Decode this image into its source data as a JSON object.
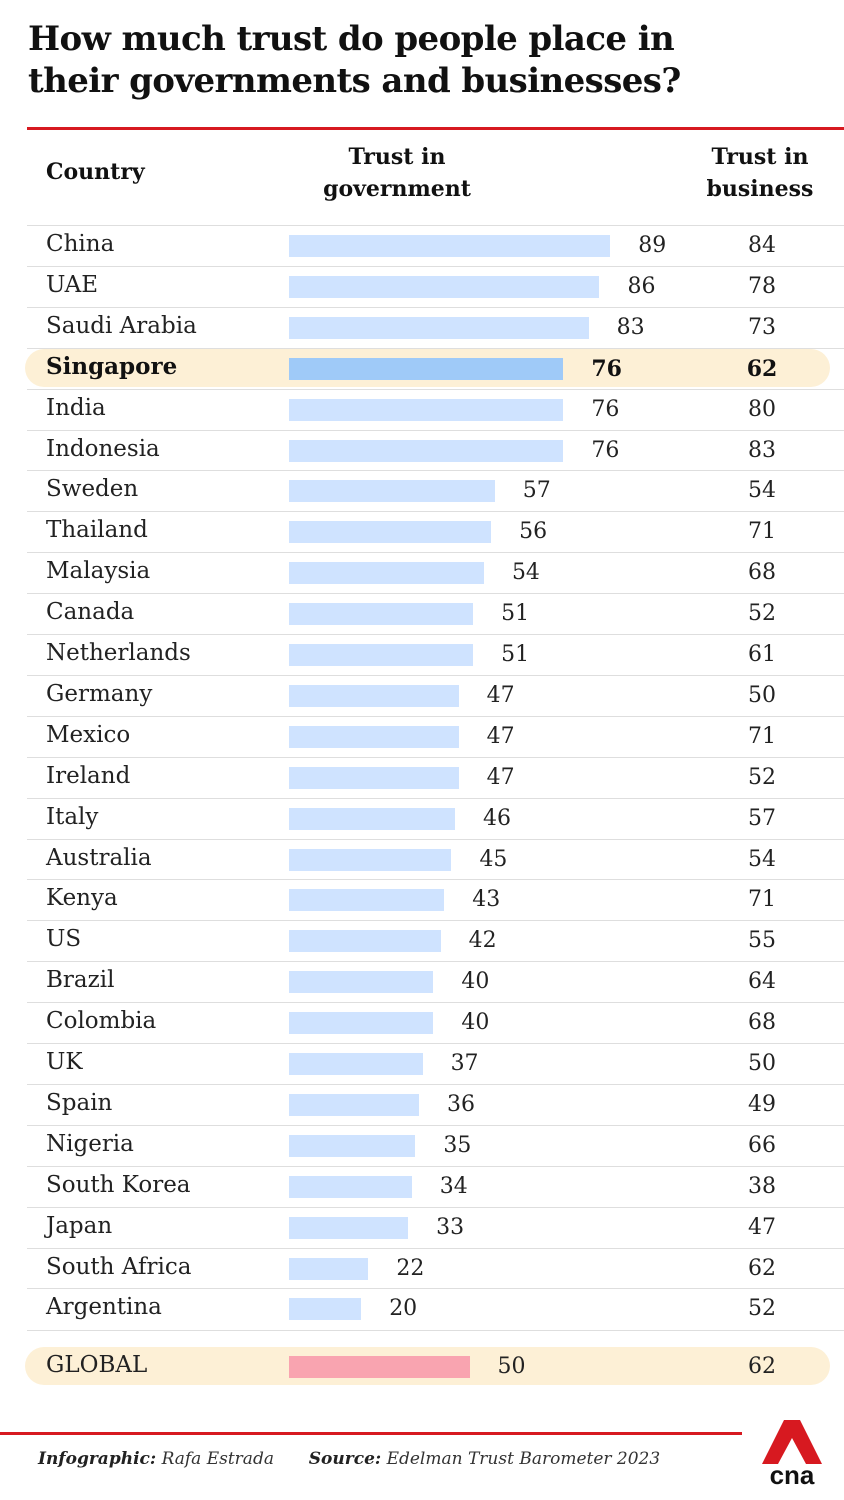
{
  "title_lines": [
    "How much trust do people place in",
    "their governments and businesses?"
  ],
  "columns": {
    "country": "Country",
    "gov_line1": "Trust in",
    "gov_line2": "government",
    "bus_line1": "Trust in",
    "bus_line2": "business"
  },
  "colors": {
    "accent_red": "#d71920",
    "bar": "#cfe3ff",
    "bar_featured": "#9fcaf8",
    "bar_global": "#f9a4b0",
    "row_highlight": "#fdf0d6"
  },
  "chart_data": {
    "type": "bar",
    "orientation": "horizontal",
    "title": "How much trust do people place in their governments and businesses?",
    "xlim": [
      0,
      100
    ],
    "categories": [
      "China",
      "UAE",
      "Saudi Arabia",
      "Singapore",
      "India",
      "Indonesia",
      "Sweden",
      "Thailand",
      "Malaysia",
      "Canada",
      "Netherlands",
      "Germany",
      "Mexico",
      "Ireland",
      "Italy",
      "Australia",
      "Kenya",
      "US",
      "Brazil",
      "Colombia",
      "UK",
      "Spain",
      "Nigeria",
      "South Korea",
      "Japan",
      "South Africa",
      "Argentina"
    ],
    "series": [
      {
        "name": "Trust in government",
        "values": [
          89,
          86,
          83,
          76,
          76,
          76,
          57,
          56,
          54,
          51,
          51,
          47,
          47,
          47,
          46,
          45,
          43,
          42,
          40,
          40,
          37,
          36,
          35,
          34,
          33,
          22,
          20
        ]
      },
      {
        "name": "Trust in business",
        "values": [
          84,
          78,
          73,
          62,
          80,
          83,
          54,
          71,
          68,
          52,
          61,
          50,
          71,
          52,
          57,
          54,
          71,
          55,
          64,
          68,
          50,
          49,
          66,
          38,
          47,
          62,
          52
        ]
      }
    ],
    "highlighted": "Singapore",
    "global": {
      "label": "GLOBAL",
      "government": 50,
      "business": 62
    }
  },
  "footer": {
    "infographic_label": "Infographic:",
    "infographic_name": "Rafa Estrada",
    "source_label": "Source:",
    "source_name": "Edelman Trust Barometer 2023"
  },
  "logo": {
    "text": "cna",
    "icon": "cna-logo-icon"
  }
}
